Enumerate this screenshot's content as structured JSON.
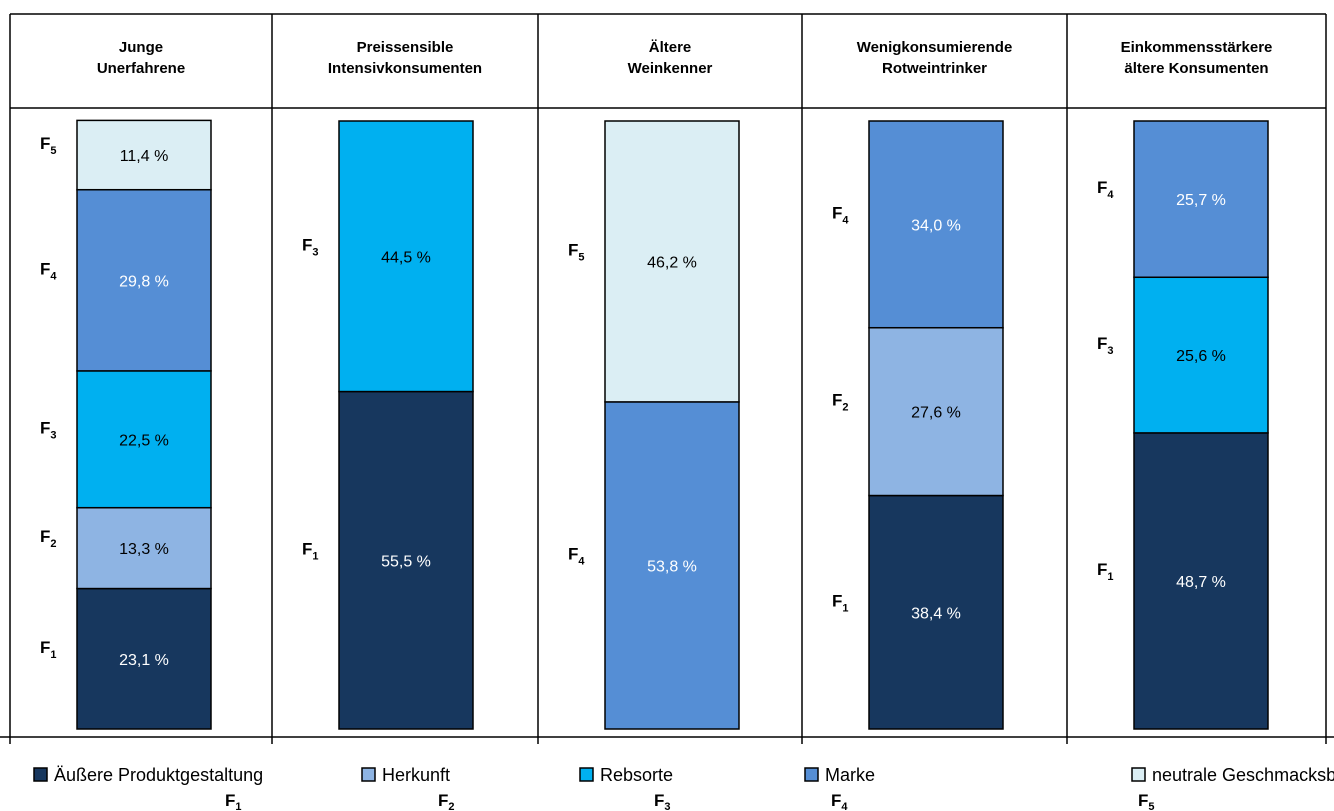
{
  "chart_data": {
    "type": "bar",
    "stacked": true,
    "percent_suffix": " %",
    "colors": {
      "F1": "#17375E",
      "F2": "#8EB4E3",
      "F3": "#00B0F0",
      "F4": "#558ED5",
      "F5": "#DBEEF4"
    },
    "legend_position": "bottom",
    "legend": [
      {
        "key": "F1",
        "name": "Äußere Produktgestaltung",
        "code": "F",
        "sub": "1"
      },
      {
        "key": "F2",
        "name": "Herkunft",
        "code": "F",
        "sub": "2"
      },
      {
        "key": "F3",
        "name": "Rebsorte",
        "code": "F",
        "sub": "3"
      },
      {
        "key": "F4",
        "name": "Marke",
        "code": "F",
        "sub": "4"
      },
      {
        "key": "F5",
        "name": "neutrale Geschmacksbewertung",
        "code": "F",
        "sub": "5"
      }
    ],
    "groups": [
      {
        "title_lines": [
          "Junge",
          "Unerfahrene"
        ],
        "segments": [
          {
            "key": "F1",
            "value": 23.1,
            "value_label": "23,1 %",
            "code": "F",
            "sub": "1"
          },
          {
            "key": "F2",
            "value": 13.3,
            "value_label": "13,3 %",
            "code": "F",
            "sub": "2"
          },
          {
            "key": "F3",
            "value": 22.5,
            "value_label": "22,5 %",
            "code": "F",
            "sub": "3"
          },
          {
            "key": "F4",
            "value": 29.8,
            "value_label": "29,8 %",
            "code": "F",
            "sub": "4"
          },
          {
            "key": "F5",
            "value": 11.4,
            "value_label": "11,4 %",
            "code": "F",
            "sub": "5"
          }
        ]
      },
      {
        "title_lines": [
          "Preissensible",
          "Intensivkonsumenten"
        ],
        "segments": [
          {
            "key": "F1",
            "value": 55.5,
            "value_label": "55,5 %",
            "code": "F",
            "sub": "1"
          },
          {
            "key": "F3",
            "value": 44.5,
            "value_label": "44,5 %",
            "code": "F",
            "sub": "3"
          }
        ]
      },
      {
        "title_lines": [
          "Ältere",
          "Weinkenner"
        ],
        "segments": [
          {
            "key": "F4",
            "value": 53.8,
            "value_label": "53,8 %",
            "code": "F",
            "sub": "4"
          },
          {
            "key": "F5",
            "value": 46.2,
            "value_label": "46,2 %",
            "code": "F",
            "sub": "5"
          }
        ]
      },
      {
        "title_lines": [
          "Wenigkonsumierende",
          "Rotweintrinker"
        ],
        "segments": [
          {
            "key": "F1",
            "value": 38.4,
            "value_label": "38,4 %",
            "code": "F",
            "sub": "1"
          },
          {
            "key": "F2",
            "value": 27.6,
            "value_label": "27,6 %",
            "code": "F",
            "sub": "2"
          },
          {
            "key": "F4",
            "value": 34.0,
            "value_label": "34,0 %",
            "code": "F",
            "sub": "4"
          }
        ]
      },
      {
        "title_lines": [
          "Einkommensstärkere",
          "ältere Konsumenten"
        ],
        "segments": [
          {
            "key": "F1",
            "value": 48.7,
            "value_label": "48,7 %",
            "code": "F",
            "sub": "1"
          },
          {
            "key": "F3",
            "value": 25.6,
            "value_label": "25,6 %",
            "code": "F",
            "sub": "3"
          },
          {
            "key": "F4",
            "value": 25.7,
            "value_label": "25,7 %",
            "code": "F",
            "sub": "4"
          }
        ]
      }
    ]
  }
}
